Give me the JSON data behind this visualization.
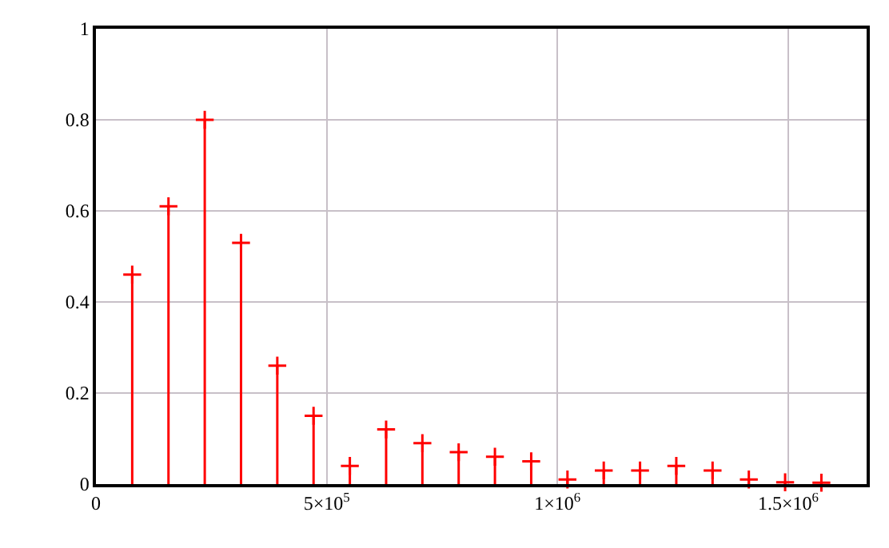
{
  "chart_data": {
    "type": "lollipop",
    "marker": "cross",
    "grid": true,
    "x": [
      78600,
      157200,
      235800,
      314400,
      393000,
      471600,
      550200,
      628800,
      707400,
      786000,
      864600,
      943200,
      1021800,
      1100400,
      1179000,
      1257600,
      1336200,
      1414800,
      1493400,
      1572000
    ],
    "values": [
      0.46,
      0.61,
      0.8,
      0.53,
      0.26,
      0.15,
      0.04,
      0.12,
      0.09,
      0.07,
      0.06,
      0.05,
      0.01,
      0.03,
      0.03,
      0.04,
      0.03,
      0.01,
      0.004,
      0.003
    ],
    "color": "#ff0000",
    "xlim": [
      0,
      1670000
    ],
    "xticks": [
      0,
      {
        "value": 500000,
        "label": "5×10$^{5}$"
      },
      {
        "value": 1000000,
        "label": "1×10$^{6}$"
      },
      {
        "value": 1500000,
        "label": "1.5×10$^{6}$"
      }
    ],
    "ylim": [
      0,
      1
    ],
    "yticks": [
      0,
      0.2,
      0.4,
      0.6,
      0.8,
      1
    ]
  }
}
